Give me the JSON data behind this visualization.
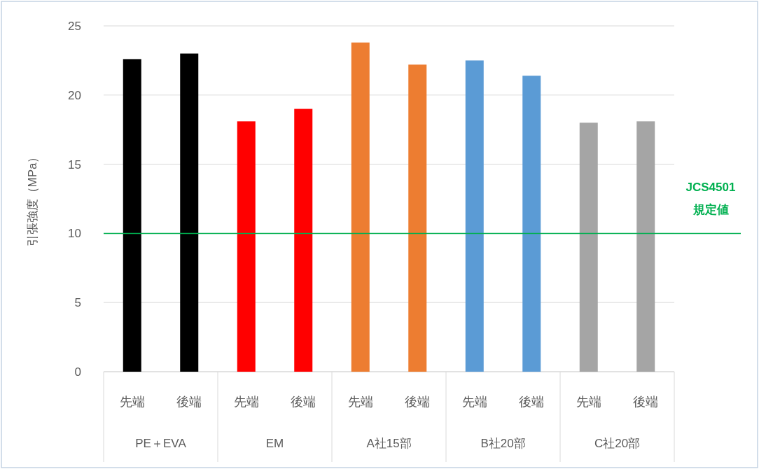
{
  "chart_data": {
    "type": "bar",
    "ylabel": "引張強度（MPa）",
    "categories": [
      "先端",
      "後端",
      "先端",
      "後端",
      "先端",
      "後端",
      "先端",
      "後端",
      "先端",
      "後端"
    ],
    "values": [
      22.6,
      23.0,
      18.1,
      19.0,
      23.8,
      22.2,
      22.5,
      21.4,
      18.0,
      18.1
    ],
    "colors": [
      "#000000",
      "#000000",
      "#ff0000",
      "#ff0000",
      "#ed7d31",
      "#ed7d31",
      "#5b9bd5",
      "#5b9bd5",
      "#a5a5a5",
      "#a5a5a5"
    ],
    "annotations": [
      "PE＋EVA",
      "EM",
      "A社15部",
      "B社20部",
      "C社20部"
    ],
    "ylim": [
      0,
      25
    ],
    "yticks": [
      0,
      5,
      10,
      15,
      20,
      25
    ],
    "grid": "y",
    "ref_lines": [
      {
        "axis": "y",
        "value": 10,
        "label": "JCS4501\n規定値",
        "color": "#00b050"
      }
    ]
  }
}
